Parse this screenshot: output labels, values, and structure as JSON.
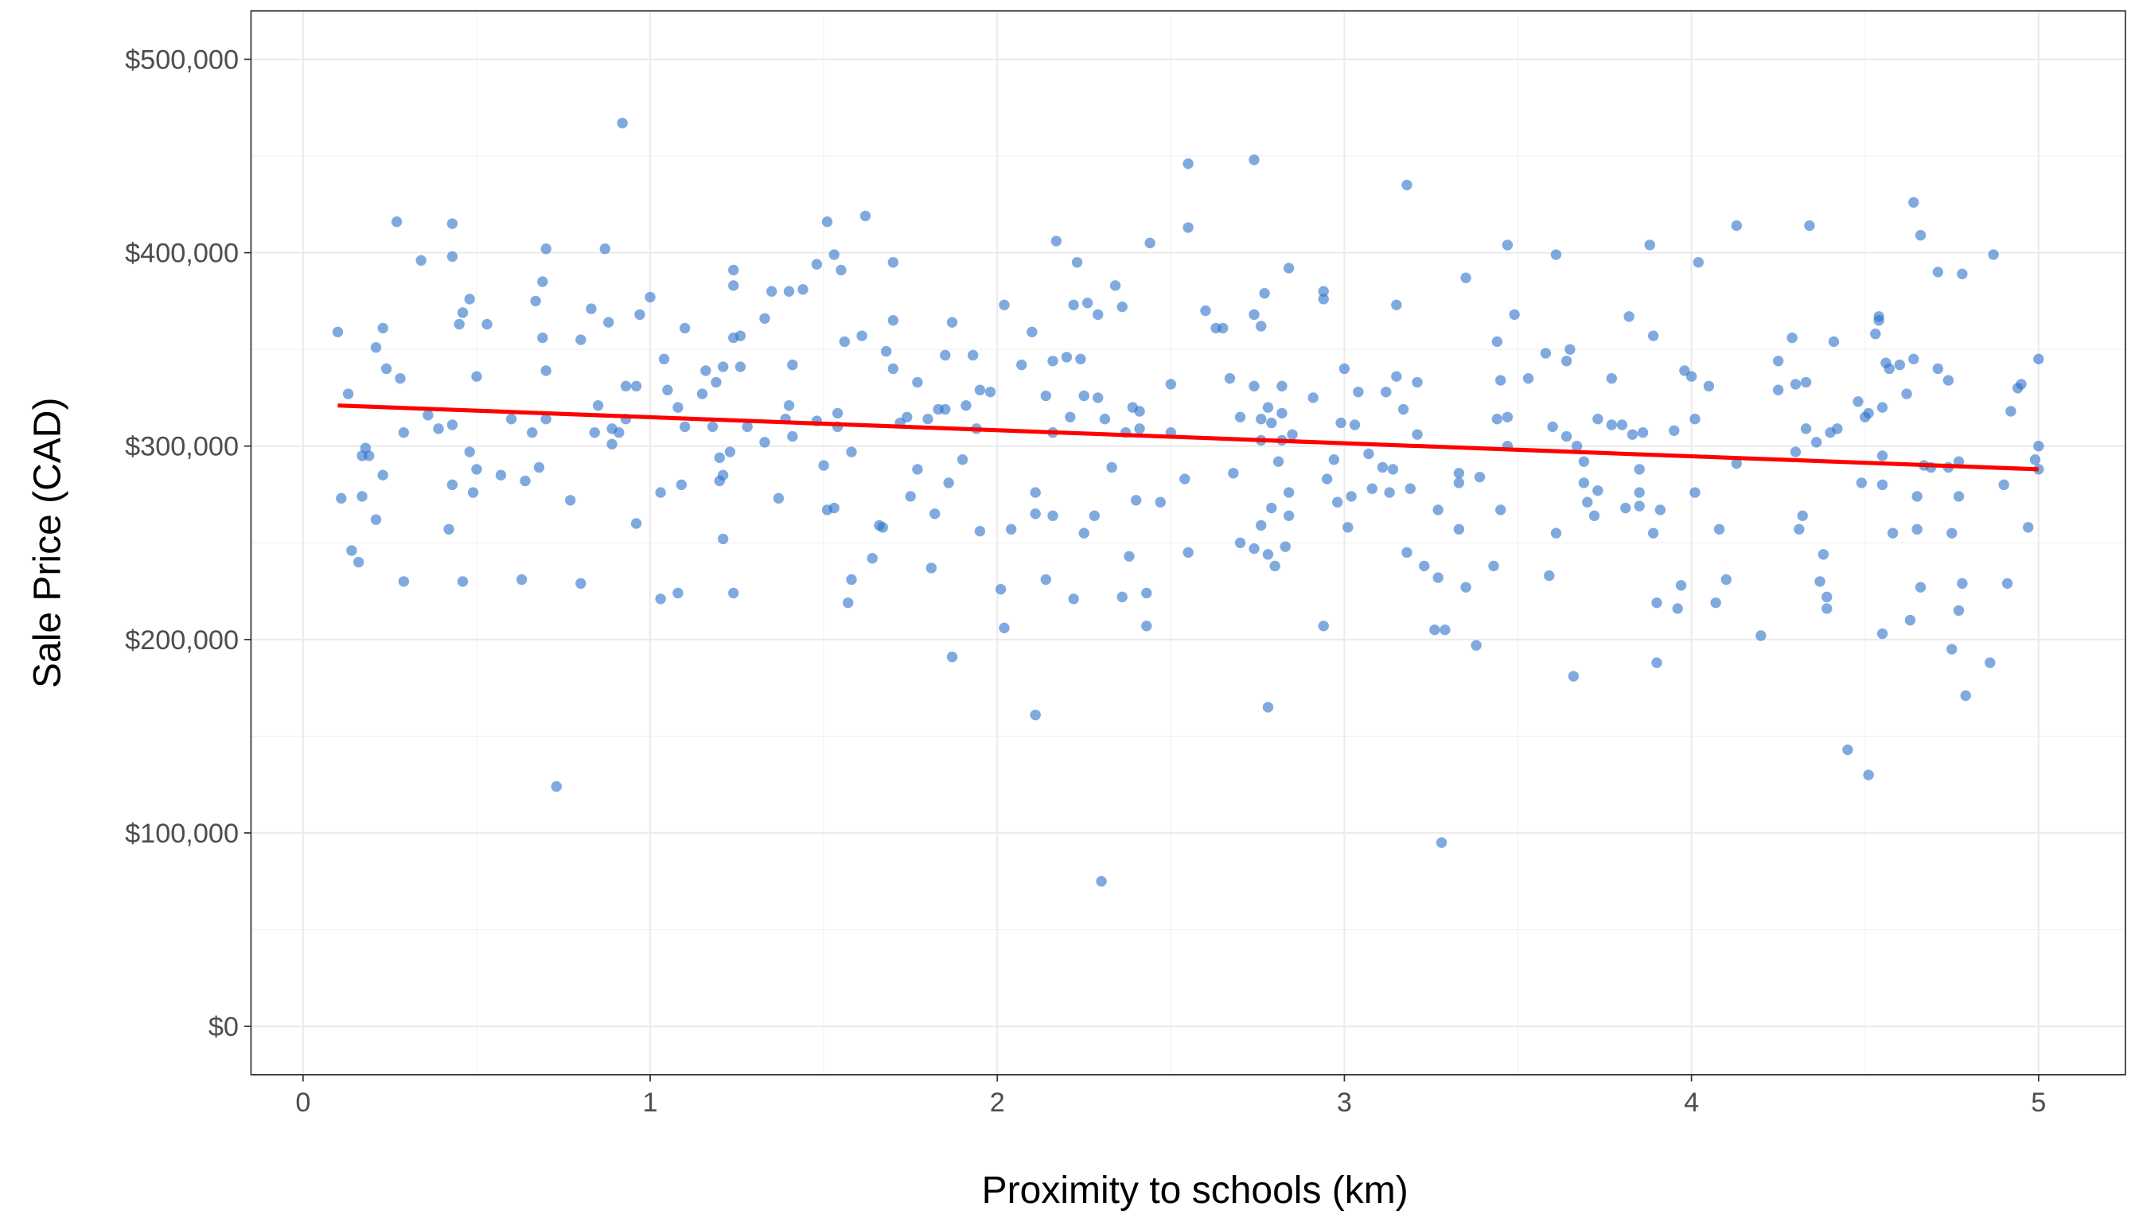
{
  "chart_data": {
    "type": "scatter",
    "title": "",
    "xlabel": "Proximity to schools (km)",
    "ylabel": "Sale Price (CAD)",
    "xlim": [
      -0.15,
      5.25
    ],
    "ylim": [
      -25000,
      525000
    ],
    "x_ticks": [
      0,
      1,
      2,
      3,
      4,
      5
    ],
    "x_tick_labels": [
      "0",
      "1",
      "2",
      "3",
      "4",
      "5"
    ],
    "y_ticks": [
      0,
      100000,
      200000,
      300000,
      400000,
      500000
    ],
    "y_tick_labels": [
      "$0",
      "$100,000",
      "$200,000",
      "$300,000",
      "$400,000",
      "$500,000"
    ],
    "grid": true,
    "legend": "none",
    "point_color": "#2b72c9",
    "line_color": "#ff0000",
    "y_unit_multiplier": 1000,
    "regression_line": {
      "x": [
        0.1,
        5.0
      ],
      "y_thousands": [
        321,
        288
      ]
    },
    "points_km_vs_thousands": [
      [
        0.1,
        359
      ],
      [
        0.11,
        273
      ],
      [
        0.13,
        327
      ],
      [
        0.14,
        246
      ],
      [
        0.16,
        240
      ],
      [
        0.17,
        295
      ],
      [
        0.17,
        274
      ],
      [
        0.18,
        299
      ],
      [
        0.19,
        295
      ],
      [
        0.21,
        351
      ],
      [
        0.21,
        262
      ],
      [
        0.23,
        361
      ],
      [
        0.23,
        285
      ],
      [
        0.24,
        340
      ],
      [
        0.27,
        416
      ],
      [
        0.28,
        335
      ],
      [
        0.29,
        307
      ],
      [
        0.29,
        230
      ],
      [
        0.34,
        396
      ],
      [
        0.36,
        316
      ],
      [
        0.39,
        309
      ],
      [
        0.42,
        257
      ],
      [
        0.43,
        415
      ],
      [
        0.43,
        398
      ],
      [
        0.43,
        311
      ],
      [
        0.43,
        280
      ],
      [
        0.45,
        363
      ],
      [
        0.46,
        369
      ],
      [
        0.46,
        230
      ],
      [
        0.48,
        376
      ],
      [
        0.48,
        297
      ],
      [
        0.49,
        276
      ],
      [
        0.5,
        336
      ],
      [
        0.5,
        288
      ],
      [
        0.53,
        363
      ],
      [
        0.57,
        285
      ],
      [
        0.6,
        314
      ],
      [
        0.63,
        231
      ],
      [
        0.64,
        282
      ],
      [
        0.66,
        307
      ],
      [
        0.67,
        375
      ],
      [
        0.68,
        289
      ],
      [
        0.69,
        385
      ],
      [
        0.69,
        356
      ],
      [
        0.7,
        402
      ],
      [
        0.7,
        339
      ],
      [
        0.7,
        314
      ],
      [
        0.73,
        124
      ],
      [
        0.77,
        272
      ],
      [
        0.8,
        229
      ],
      [
        0.8,
        355
      ],
      [
        0.83,
        371
      ],
      [
        0.84,
        307
      ],
      [
        0.85,
        321
      ],
      [
        0.87,
        402
      ],
      [
        0.88,
        364
      ],
      [
        0.89,
        309
      ],
      [
        0.89,
        301
      ],
      [
        0.91,
        307
      ],
      [
        0.92,
        467
      ],
      [
        0.93,
        331
      ],
      [
        0.93,
        314
      ],
      [
        0.96,
        331
      ],
      [
        0.96,
        260
      ],
      [
        0.97,
        368
      ],
      [
        1.0,
        377
      ],
      [
        1.03,
        221
      ],
      [
        1.03,
        276
      ],
      [
        1.04,
        345
      ],
      [
        1.05,
        329
      ],
      [
        1.08,
        320
      ],
      [
        1.08,
        224
      ],
      [
        1.09,
        280
      ],
      [
        1.1,
        361
      ],
      [
        1.1,
        310
      ],
      [
        1.15,
        327
      ],
      [
        1.16,
        339
      ],
      [
        1.18,
        310
      ],
      [
        1.19,
        333
      ],
      [
        1.2,
        294
      ],
      [
        1.2,
        282
      ],
      [
        1.21,
        341
      ],
      [
        1.21,
        285
      ],
      [
        1.21,
        252
      ],
      [
        1.23,
        297
      ],
      [
        1.24,
        356
      ],
      [
        1.24,
        383
      ],
      [
        1.24,
        391
      ],
      [
        1.24,
        224
      ],
      [
        1.26,
        357
      ],
      [
        1.26,
        341
      ],
      [
        1.28,
        310
      ],
      [
        1.33,
        302
      ],
      [
        1.33,
        366
      ],
      [
        1.35,
        380
      ],
      [
        1.37,
        273
      ],
      [
        1.39,
        314
      ],
      [
        1.4,
        321
      ],
      [
        1.4,
        380
      ],
      [
        1.41,
        342
      ],
      [
        1.41,
        305
      ],
      [
        1.44,
        381
      ],
      [
        1.48,
        394
      ],
      [
        1.48,
        313
      ],
      [
        1.5,
        290
      ],
      [
        1.51,
        416
      ],
      [
        1.51,
        267
      ],
      [
        1.53,
        268
      ],
      [
        1.53,
        399
      ],
      [
        1.54,
        310
      ],
      [
        1.54,
        317
      ],
      [
        1.55,
        391
      ],
      [
        1.56,
        354
      ],
      [
        1.57,
        219
      ],
      [
        1.58,
        231
      ],
      [
        1.58,
        297
      ],
      [
        1.61,
        357
      ],
      [
        1.62,
        419
      ],
      [
        1.64,
        242
      ],
      [
        1.66,
        259
      ],
      [
        1.67,
        258
      ],
      [
        1.68,
        349
      ],
      [
        1.7,
        365
      ],
      [
        1.7,
        340
      ],
      [
        1.7,
        395
      ],
      [
        1.72,
        312
      ],
      [
        1.74,
        315
      ],
      [
        1.75,
        274
      ],
      [
        1.77,
        333
      ],
      [
        1.77,
        288
      ],
      [
        1.8,
        314
      ],
      [
        1.81,
        237
      ],
      [
        1.82,
        265
      ],
      [
        1.83,
        319
      ],
      [
        1.85,
        347
      ],
      [
        1.85,
        319
      ],
      [
        1.86,
        281
      ],
      [
        1.87,
        364
      ],
      [
        1.87,
        191
      ],
      [
        1.9,
        293
      ],
      [
        1.91,
        321
      ],
      [
        1.93,
        347
      ],
      [
        1.94,
        309
      ],
      [
        1.95,
        256
      ],
      [
        1.95,
        329
      ],
      [
        1.98,
        328
      ],
      [
        2.01,
        226
      ],
      [
        2.02,
        373
      ],
      [
        2.02,
        206
      ],
      [
        2.04,
        257
      ],
      [
        2.07,
        342
      ],
      [
        2.1,
        359
      ],
      [
        2.11,
        276
      ],
      [
        2.11,
        265
      ],
      [
        2.11,
        161
      ],
      [
        2.14,
        326
      ],
      [
        2.14,
        231
      ],
      [
        2.16,
        264
      ],
      [
        2.16,
        344
      ],
      [
        2.16,
        307
      ],
      [
        2.17,
        406
      ],
      [
        2.2,
        346
      ],
      [
        2.21,
        315
      ],
      [
        2.22,
        221
      ],
      [
        2.22,
        373
      ],
      [
        2.23,
        395
      ],
      [
        2.24,
        345
      ],
      [
        2.25,
        326
      ],
      [
        2.25,
        255
      ],
      [
        2.26,
        374
      ],
      [
        2.28,
        264
      ],
      [
        2.29,
        368
      ],
      [
        2.29,
        325
      ],
      [
        2.3,
        75
      ],
      [
        2.31,
        314
      ],
      [
        2.33,
        289
      ],
      [
        2.34,
        383
      ],
      [
        2.36,
        372
      ],
      [
        2.36,
        222
      ],
      [
        2.37,
        307
      ],
      [
        2.38,
        243
      ],
      [
        2.39,
        320
      ],
      [
        2.4,
        272
      ],
      [
        2.41,
        309
      ],
      [
        2.41,
        318
      ],
      [
        2.43,
        207
      ],
      [
        2.44,
        405
      ],
      [
        2.43,
        224
      ],
      [
        2.47,
        271
      ],
      [
        2.5,
        332
      ],
      [
        2.5,
        307
      ],
      [
        2.54,
        283
      ],
      [
        2.55,
        245
      ],
      [
        2.55,
        446
      ],
      [
        2.55,
        413
      ],
      [
        2.6,
        370
      ],
      [
        2.63,
        361
      ],
      [
        2.65,
        361
      ],
      [
        2.67,
        335
      ],
      [
        2.68,
        286
      ],
      [
        2.7,
        250
      ],
      [
        2.7,
        315
      ],
      [
        2.74,
        448
      ],
      [
        2.74,
        368
      ],
      [
        2.74,
        331
      ],
      [
        2.74,
        247
      ],
      [
        2.76,
        303
      ],
      [
        2.76,
        259
      ],
      [
        2.76,
        362
      ],
      [
        2.76,
        314
      ],
      [
        2.77,
        379
      ],
      [
        2.78,
        320
      ],
      [
        2.78,
        244
      ],
      [
        2.78,
        165
      ],
      [
        2.79,
        268
      ],
      [
        2.79,
        312
      ],
      [
        2.8,
        238
      ],
      [
        2.81,
        292
      ],
      [
        2.82,
        303
      ],
      [
        2.82,
        317
      ],
      [
        2.82,
        331
      ],
      [
        2.83,
        248
      ],
      [
        2.84,
        276
      ],
      [
        2.84,
        264
      ],
      [
        2.84,
        392
      ],
      [
        2.85,
        306
      ],
      [
        2.91,
        325
      ],
      [
        2.94,
        207
      ],
      [
        2.94,
        380
      ],
      [
        2.94,
        376
      ],
      [
        2.95,
        283
      ],
      [
        2.97,
        293
      ],
      [
        2.98,
        271
      ],
      [
        2.99,
        312
      ],
      [
        3.0,
        340
      ],
      [
        3.01,
        258
      ],
      [
        3.02,
        274
      ],
      [
        3.03,
        311
      ],
      [
        3.04,
        328
      ],
      [
        3.07,
        296
      ],
      [
        3.08,
        278
      ],
      [
        3.11,
        289
      ],
      [
        3.12,
        328
      ],
      [
        3.13,
        276
      ],
      [
        3.14,
        288
      ],
      [
        3.15,
        336
      ],
      [
        3.15,
        373
      ],
      [
        3.17,
        319
      ],
      [
        3.18,
        435
      ],
      [
        3.18,
        245
      ],
      [
        3.19,
        278
      ],
      [
        3.21,
        333
      ],
      [
        3.21,
        306
      ],
      [
        3.23,
        238
      ],
      [
        3.26,
        205
      ],
      [
        3.27,
        267
      ],
      [
        3.27,
        232
      ],
      [
        3.28,
        95
      ],
      [
        3.29,
        205
      ],
      [
        3.33,
        286
      ],
      [
        3.33,
        281
      ],
      [
        3.33,
        257
      ],
      [
        3.35,
        387
      ],
      [
        3.35,
        227
      ],
      [
        3.38,
        197
      ],
      [
        3.39,
        284
      ],
      [
        3.43,
        238
      ],
      [
        3.44,
        354
      ],
      [
        3.44,
        314
      ],
      [
        3.45,
        334
      ],
      [
        3.45,
        267
      ],
      [
        3.47,
        404
      ],
      [
        3.47,
        315
      ],
      [
        3.47,
        300
      ],
      [
        3.49,
        368
      ],
      [
        3.53,
        335
      ],
      [
        3.58,
        348
      ],
      [
        3.59,
        233
      ],
      [
        3.6,
        310
      ],
      [
        3.61,
        399
      ],
      [
        3.61,
        255
      ],
      [
        3.64,
        344
      ],
      [
        3.64,
        305
      ],
      [
        3.65,
        350
      ],
      [
        3.66,
        181
      ],
      [
        3.67,
        300
      ],
      [
        3.69,
        292
      ],
      [
        3.69,
        281
      ],
      [
        3.7,
        271
      ],
      [
        3.72,
        264
      ],
      [
        3.73,
        314
      ],
      [
        3.73,
        277
      ],
      [
        3.77,
        335
      ],
      [
        3.77,
        311
      ],
      [
        3.8,
        311
      ],
      [
        3.81,
        268
      ],
      [
        3.82,
        367
      ],
      [
        3.83,
        306
      ],
      [
        3.85,
        288
      ],
      [
        3.85,
        276
      ],
      [
        3.85,
        269
      ],
      [
        3.86,
        307
      ],
      [
        3.88,
        404
      ],
      [
        3.89,
        357
      ],
      [
        3.89,
        255
      ],
      [
        3.9,
        219
      ],
      [
        3.9,
        188
      ],
      [
        3.91,
        267
      ],
      [
        3.95,
        308
      ],
      [
        3.96,
        216
      ],
      [
        3.97,
        228
      ],
      [
        3.98,
        339
      ],
      [
        4.0,
        336
      ],
      [
        4.01,
        314
      ],
      [
        4.01,
        276
      ],
      [
        4.02,
        395
      ],
      [
        4.05,
        331
      ],
      [
        4.07,
        219
      ],
      [
        4.08,
        257
      ],
      [
        4.1,
        231
      ],
      [
        4.13,
        414
      ],
      [
        4.13,
        291
      ],
      [
        4.2,
        202
      ],
      [
        4.25,
        344
      ],
      [
        4.25,
        329
      ],
      [
        4.29,
        356
      ],
      [
        4.3,
        297
      ],
      [
        4.3,
        332
      ],
      [
        4.31,
        257
      ],
      [
        4.32,
        264
      ],
      [
        4.33,
        333
      ],
      [
        4.33,
        309
      ],
      [
        4.34,
        414
      ],
      [
        4.36,
        302
      ],
      [
        4.37,
        230
      ],
      [
        4.38,
        244
      ],
      [
        4.39,
        222
      ],
      [
        4.39,
        216
      ],
      [
        4.4,
        307
      ],
      [
        4.41,
        354
      ],
      [
        4.42,
        309
      ],
      [
        4.45,
        143
      ],
      [
        4.48,
        323
      ],
      [
        4.49,
        281
      ],
      [
        4.5,
        315
      ],
      [
        4.51,
        130
      ],
      [
        4.51,
        317
      ],
      [
        4.53,
        358
      ],
      [
        4.54,
        367
      ],
      [
        4.54,
        365
      ],
      [
        4.55,
        295
      ],
      [
        4.55,
        280
      ],
      [
        4.55,
        320
      ],
      [
        4.55,
        203
      ],
      [
        4.56,
        343
      ],
      [
        4.57,
        340
      ],
      [
        4.58,
        255
      ],
      [
        4.6,
        342
      ],
      [
        4.62,
        327
      ],
      [
        4.63,
        210
      ],
      [
        4.64,
        426
      ],
      [
        4.64,
        345
      ],
      [
        4.65,
        274
      ],
      [
        4.65,
        257
      ],
      [
        4.66,
        409
      ],
      [
        4.66,
        227
      ],
      [
        4.67,
        290
      ],
      [
        4.69,
        289
      ],
      [
        4.71,
        390
      ],
      [
        4.71,
        340
      ],
      [
        4.74,
        334
      ],
      [
        4.74,
        289
      ],
      [
        4.75,
        255
      ],
      [
        4.75,
        195
      ],
      [
        4.77,
        292
      ],
      [
        4.77,
        274
      ],
      [
        4.77,
        215
      ],
      [
        4.78,
        389
      ],
      [
        4.78,
        229
      ],
      [
        4.79,
        171
      ],
      [
        4.86,
        188
      ],
      [
        4.87,
        399
      ],
      [
        4.9,
        280
      ],
      [
        4.91,
        229
      ],
      [
        4.92,
        318
      ],
      [
        4.94,
        330
      ],
      [
        4.95,
        332
      ],
      [
        4.97,
        258
      ],
      [
        4.99,
        293
      ],
      [
        5.0,
        345
      ],
      [
        5.0,
        300
      ],
      [
        5.0,
        288
      ]
    ]
  }
}
